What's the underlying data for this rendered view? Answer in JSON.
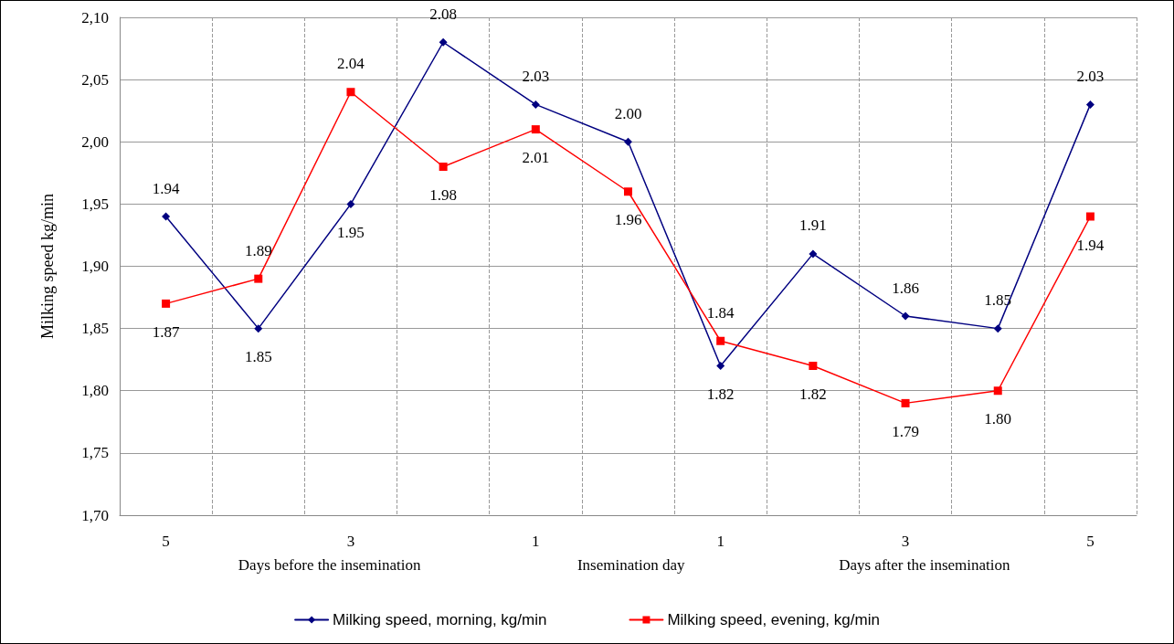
{
  "chart_data": {
    "type": "line",
    "ylabel": "Milking speed kg/min",
    "categories": [
      "5",
      null,
      "3",
      null,
      "1",
      null,
      "1",
      null,
      "3",
      null,
      "5"
    ],
    "annotations": [
      "Days before the insemination",
      "Insemination day",
      "Days after the insemination"
    ],
    "series": [
      {
        "name": "Milking speed, morning, kg/min",
        "color": "#000080",
        "marker": "diamond",
        "values": [
          1.94,
          1.85,
          1.95,
          2.08,
          2.03,
          2.0,
          1.82,
          1.91,
          1.86,
          1.85,
          2.03
        ],
        "value_labels": [
          "1.94",
          "1.85",
          "1.95",
          "2.08",
          "2.03",
          "2.00",
          "1.82",
          "1.91",
          "1.86",
          "1.85",
          "2.03"
        ]
      },
      {
        "name": "Milking speed, evening, kg/min",
        "color": "#ff0000",
        "marker": "square",
        "values": [
          1.87,
          1.89,
          2.04,
          1.98,
          2.01,
          1.96,
          1.84,
          1.82,
          1.79,
          1.8,
          1.94
        ],
        "value_labels": [
          "1.87",
          "1.89",
          "2.04",
          "1.98",
          "2.01",
          "1.96",
          "1.84",
          "1.82",
          "1.79",
          "1.80",
          "1.94"
        ]
      }
    ],
    "ylim": [
      1.7,
      2.1
    ],
    "yticks": [
      {
        "value": 1.7,
        "label": "1,70"
      },
      {
        "value": 1.75,
        "label": "1,75"
      },
      {
        "value": 1.8,
        "label": "1,80"
      },
      {
        "value": 1.85,
        "label": "1,85"
      },
      {
        "value": 1.9,
        "label": "1,90"
      },
      {
        "value": 1.95,
        "label": "1,95"
      },
      {
        "value": 2.0,
        "label": "2,00"
      },
      {
        "value": 2.05,
        "label": "2,05"
      },
      {
        "value": 2.1,
        "label": "2,10"
      }
    ],
    "grid": true,
    "legend": "bottom",
    "line_style": "solid"
  }
}
